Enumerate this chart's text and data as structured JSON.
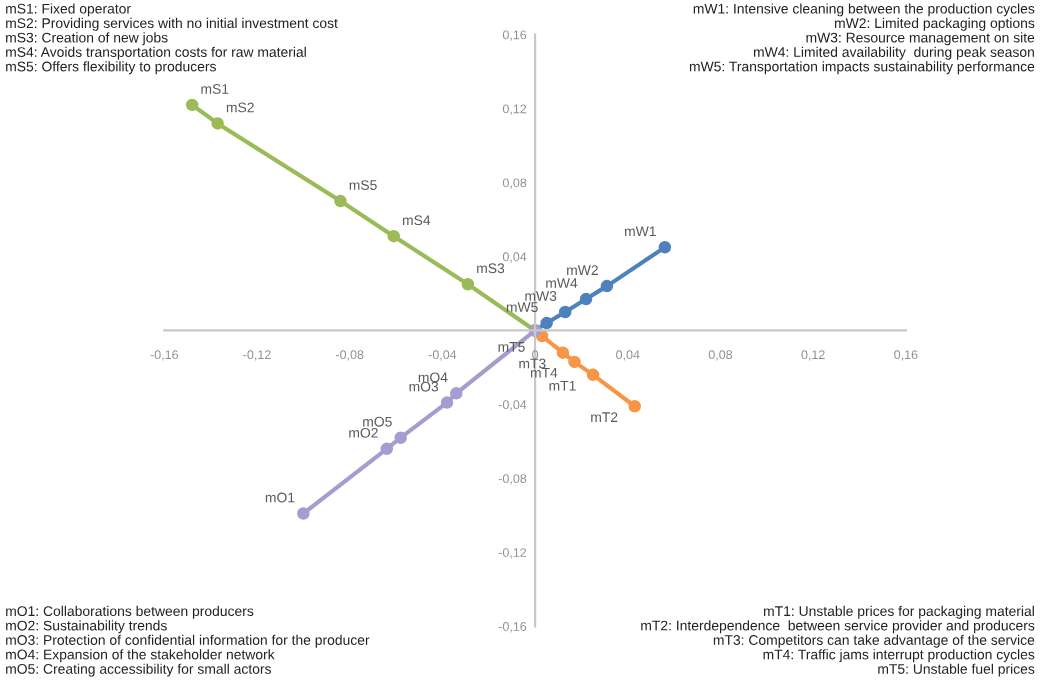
{
  "chart_data": {
    "type": "line",
    "marker": "circle",
    "line_style": "solid",
    "grid": false,
    "legend": false,
    "xlim": [
      -0.16,
      0.16
    ],
    "ylim": [
      -0.16,
      0.16
    ],
    "xticks": [
      {
        "value": -0.16,
        "label": "-0,16"
      },
      {
        "value": -0.12,
        "label": "-0,12"
      },
      {
        "value": -0.08,
        "label": "-0,08"
      },
      {
        "value": -0.04,
        "label": "-0,04"
      },
      {
        "value": 0,
        "label": "0"
      },
      {
        "value": 0.04,
        "label": "0,04"
      },
      {
        "value": 0.08,
        "label": "0,08"
      },
      {
        "value": 0.12,
        "label": "0,12"
      },
      {
        "value": 0.16,
        "label": "0,16"
      }
    ],
    "yticks": [
      {
        "value": -0.16,
        "label": "-0,16"
      },
      {
        "value": -0.12,
        "label": "-0,12"
      },
      {
        "value": -0.08,
        "label": "-0,08"
      },
      {
        "value": -0.04,
        "label": "-0,04"
      },
      {
        "value": 0.04,
        "label": "0,04"
      },
      {
        "value": 0.08,
        "label": "0,08"
      },
      {
        "value": 0.12,
        "label": "0,12"
      },
      {
        "value": 0.16,
        "label": "0,16"
      }
    ],
    "series": [
      {
        "color": "#9bbb59",
        "x": [
          -0.148,
          -0.137,
          -0.084,
          -0.061,
          -0.029,
          0
        ],
        "values": [
          0.122,
          0.112,
          0.07,
          0.051,
          0.025,
          0
        ]
      },
      {
        "color": "#4f81bd",
        "x": [
          0,
          0.005,
          0.013,
          0.022,
          0.031,
          0.056
        ],
        "values": [
          0,
          0.004,
          0.01,
          0.017,
          0.024,
          0.045
        ]
      },
      {
        "color": "#f79646",
        "x": [
          0,
          0.003,
          0.012,
          0.017,
          0.025,
          0.043
        ],
        "values": [
          0,
          -0.003,
          -0.012,
          -0.017,
          -0.024,
          -0.041
        ]
      },
      {
        "color": "#a79cd0",
        "x": [
          -0.1,
          -0.064,
          -0.058,
          -0.038,
          -0.034,
          0
        ],
        "values": [
          -0.099,
          -0.064,
          -0.058,
          -0.039,
          -0.034,
          0
        ]
      }
    ],
    "annotations": [
      "mS1: Fixed operator\nmS2: Providing services with no initial investment cost\nmS3: Creation of new jobs\nmS4: Avoids transportation costs for raw material\nmS5: Offers flexibility to producers",
      "mW1: Intensive cleaning between the production cycles\nmW2: Limited packaging options\nmW3: Resource management on site\nmW4: Limited availability  during peak season\nmW5: Transportation impacts sustainability performance",
      "mO1: Collaborations between producers\nmO2: Sustainability trends\nmO3: Protection of confidential information for the producer\nmO4: Expansion of the stakeholder network\nmO5: Creating accessibility for small actors",
      "mT1: Unstable prices for packaging material\nmT2: Interdependence  between service provider and producers\nmT3: Competitors can take advantage of the service\nmT4: Traffic jams interrupt production cycles\nmT5: Unstable fuel prices",
      {
        "text": "mS1",
        "x": -0.148,
        "y": 0.122
      },
      {
        "text": "mS2",
        "x": -0.137,
        "y": 0.112
      },
      {
        "text": "mS5",
        "x": -0.084,
        "y": 0.07
      },
      {
        "text": "mS4",
        "x": -0.061,
        "y": 0.051
      },
      {
        "text": "mS3",
        "x": -0.029,
        "y": 0.025
      },
      {
        "text": "mW1",
        "x": 0.056,
        "y": 0.045
      },
      {
        "text": "mW2",
        "x": 0.031,
        "y": 0.024
      },
      {
        "text": "mW3",
        "x": 0.013,
        "y": 0.01
      },
      {
        "text": "mW4",
        "x": 0.022,
        "y": 0.017
      },
      {
        "text": "mW5",
        "x": 0.005,
        "y": 0.004
      },
      {
        "text": "mT1",
        "x": 0.025,
        "y": -0.024
      },
      {
        "text": "mT2",
        "x": 0.043,
        "y": -0.041
      },
      {
        "text": "mT3",
        "x": 0.012,
        "y": -0.012
      },
      {
        "text": "mT4",
        "x": 0.017,
        "y": -0.017
      },
      {
        "text": "mT5",
        "x": 0.003,
        "y": -0.003
      },
      {
        "text": "mO1",
        "x": -0.1,
        "y": -0.099
      },
      {
        "text": "mO2",
        "x": -0.064,
        "y": -0.064
      },
      {
        "text": "mO5",
        "x": -0.058,
        "y": -0.058
      },
      {
        "text": "mO3",
        "x": -0.038,
        "y": -0.039
      },
      {
        "text": "mO4",
        "x": -0.034,
        "y": -0.034
      }
    ]
  }
}
